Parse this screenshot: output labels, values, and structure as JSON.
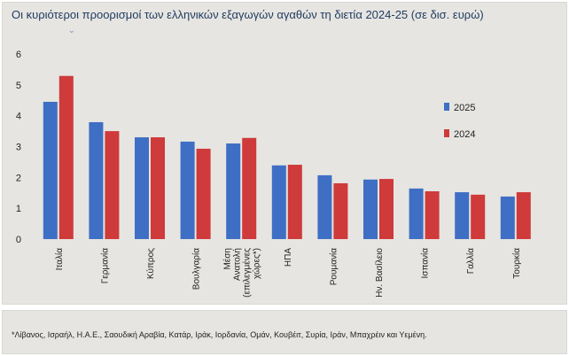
{
  "title": "Οι κυριότεροι προορισμοί των ελληνικών εξαγωγών αγαθών τη διετία 2024-25 (σε δισ. ευρώ)",
  "footnote": "*Λίβανος, Ισραήλ, Η.Α.Ε., Σαουδική Αραβία, Κατάρ, Ιράκ, Ιορδανία, Ομάν, Κουβέιτ, Συρία, Ιράν, Μπαχρέιν και Υεμένη.",
  "chart_data": {
    "type": "bar",
    "title": "Οι κυριότεροι προορισμοί των ελληνικών εξαγωγών αγαθών τη διετία 2024-25 (σε δισ. ευρώ)",
    "categories": [
      "Ιταλία",
      "Γερμανία",
      "Κύπρος",
      "Βουλγαρία",
      "Μέση Ανατολή (επιλεγμένες χώρες*)",
      "ΗΠΑ",
      "Ρουμανία",
      "Ην. Βασίλειο",
      "Ισπανία",
      "Γαλλία",
      "Τουρκία"
    ],
    "series": [
      {
        "name": "2025",
        "color": "#3f6fc4",
        "values": [
          4.45,
          3.79,
          3.3,
          3.16,
          3.1,
          2.39,
          2.07,
          1.93,
          1.64,
          1.52,
          1.38
        ]
      },
      {
        "name": "2024",
        "color": "#cf3a3a",
        "values": [
          5.29,
          3.5,
          3.3,
          2.93,
          3.28,
          2.41,
          1.81,
          1.95,
          1.55,
          1.44,
          1.52
        ]
      }
    ],
    "ylim": [
      0,
      6
    ],
    "yticks": [
      "0",
      "1",
      "2",
      "3",
      "4",
      "5",
      "6"
    ],
    "grid": false,
    "legend": "right"
  }
}
